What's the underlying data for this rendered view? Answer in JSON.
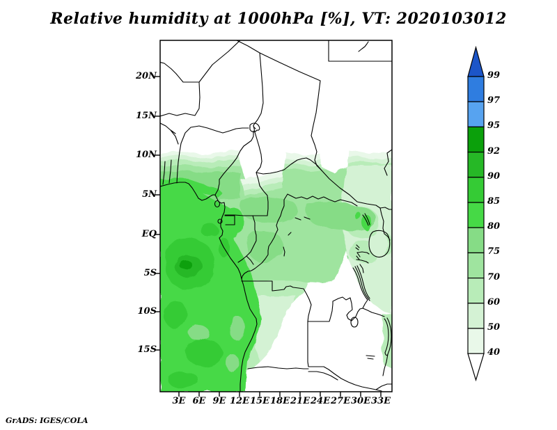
{
  "title": {
    "text": "Relative humidity at 1000hPa [%], VT: 2020103012"
  },
  "footer": {
    "text": "GrADS: IGES/COLA"
  },
  "map": {
    "lat_labels": [
      "20N",
      "15N",
      "10N",
      "5N",
      "EQ",
      "5S",
      "10S",
      "15S"
    ],
    "lon_labels": [
      "3E",
      "6E",
      "9E",
      "12E",
      "15E",
      "18E",
      "21E",
      "24E",
      "27E",
      "30E",
      "33E"
    ]
  },
  "colorbar": {
    "labels": [
      "99",
      "97",
      "95",
      "92",
      "90",
      "85",
      "80",
      "75",
      "70",
      "60",
      "50",
      "40"
    ],
    "segment_colors_top_to_bottom": [
      "#2f7de0",
      "#57a3f0",
      "#0ba00b",
      "#26b826",
      "#35cb35",
      "#46d946",
      "#86dc86",
      "#9fe49f",
      "#b8ecb8",
      "#d4f2d4",
      "#e9f8e9"
    ],
    "arrow_top_color": "#1c55c8",
    "arrow_bottom_color": "#ffffff",
    "units": "%"
  },
  "chart_data": {
    "type": "heatmap",
    "title": "Relative humidity at 1000hPa [%], VT: 2020103012",
    "valid_time": "2020103012",
    "variable": "Relative humidity",
    "level": "1000hPa",
    "units": "%",
    "x_axis": {
      "tick_labels": [
        "3E",
        "6E",
        "9E",
        "12E",
        "15E",
        "18E",
        "21E",
        "24E",
        "27E",
        "30E",
        "33E"
      ],
      "range_deg_east": [
        0.2,
        34.7
      ]
    },
    "y_axis": {
      "tick_labels": [
        "20N",
        "15N",
        "10N",
        "5N",
        "EQ",
        "5S",
        "10S",
        "15S"
      ],
      "range_deg_north": [
        -20.3,
        24.6
      ]
    },
    "contour_levels": [
      40,
      50,
      60,
      70,
      75,
      80,
      85,
      90,
      92,
      95,
      97,
      99
    ],
    "colors_low_to_high": [
      "#e9f8e9",
      "#d4f2d4",
      "#b8ecb8",
      "#9fe49f",
      "#86dc86",
      "#46d946",
      "#35cb35",
      "#26b826",
      "#0ba00b",
      "#57a3f0",
      "#2f7de0",
      "#1c55c8"
    ],
    "field_summary": [
      "White (RH < 40%) over Sahara/Sahel north of ~10N and over SE interior (Zambia, Tanzania, southern Angola, Namibia)",
      "Sharp meridional gradient 10N to 5N from <40% to ~80%",
      "Atlantic ocean area 80-85% with 85-92% maximum blob near 3E, 4S",
      "Congo basin 70-80%, fading to 40-60% toward East African lakes",
      "Green coastal strip follows Gabon/Congo/Angola coast south to ~15S"
    ]
  }
}
